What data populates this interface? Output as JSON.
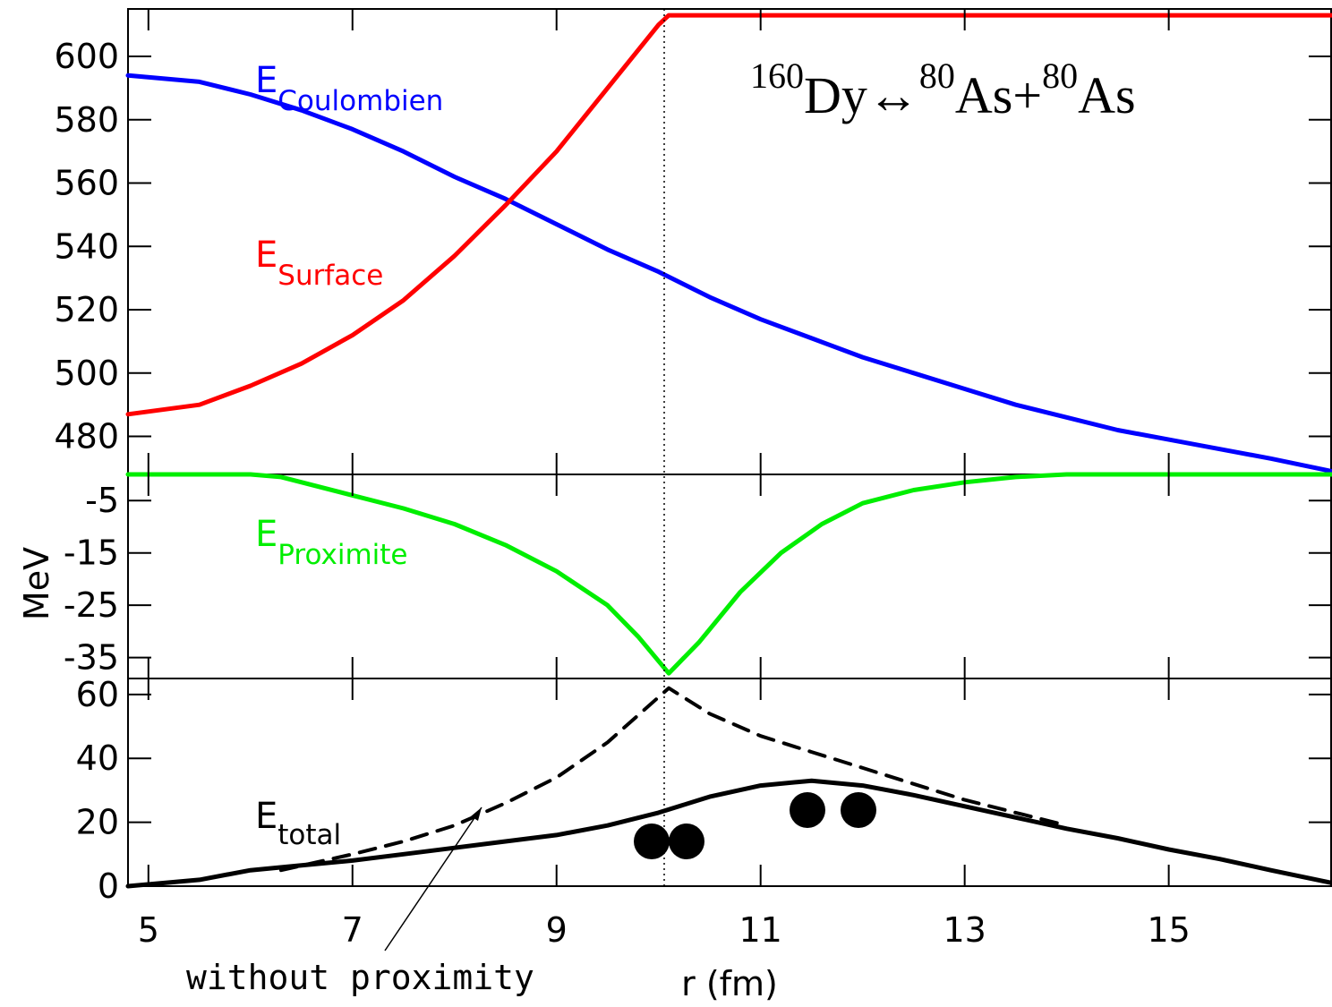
{
  "chart_data": {
    "type": "line",
    "xlabel": "r (fm)",
    "ylabel": "MeV",
    "x_ticks": [
      "5",
      "7",
      "9",
      "11",
      "13",
      "15"
    ],
    "xlim": [
      4.8,
      16.6
    ],
    "vline_x": 10.1,
    "reaction": {
      "a1": "160",
      "n1": "Dy",
      "arrow": "↔",
      "a2": "80",
      "n2": "As",
      "plus": "+",
      "a3": "80",
      "n3": "As"
    },
    "panels": [
      {
        "ylim": [
          468,
          615
        ],
        "y_ticks": [
          "600",
          "580",
          "560",
          "540",
          "520",
          "500",
          "480"
        ],
        "series": [
          {
            "name": "ECoulombien",
            "label_main": "E",
            "label_sub": "Coulombien",
            "color": "#0000ff",
            "x": [
              4.8,
              5.5,
              6.0,
              6.5,
              7.0,
              7.5,
              8.0,
              8.5,
              9.0,
              9.5,
              10.0,
              10.5,
              11.0,
              11.5,
              12.0,
              12.5,
              13.0,
              13.5,
              14.0,
              14.5,
              15.0,
              15.5,
              16.0,
              16.6
            ],
            "y": [
              594,
              592,
              588,
              583,
              577,
              570,
              562,
              555,
              547,
              539,
              532,
              524,
              517,
              511,
              505,
              500,
              495,
              490,
              486,
              482,
              479,
              476,
              473,
              469
            ]
          },
          {
            "name": "ESurface",
            "label_main": "E",
            "label_sub": "Surface",
            "color": "#ff0000",
            "x": [
              4.8,
              5.5,
              6.0,
              6.5,
              7.0,
              7.5,
              8.0,
              8.5,
              9.0,
              9.5,
              10.0,
              10.1,
              16.6
            ],
            "y": [
              487,
              490,
              496,
              503,
              512,
              523,
              537,
              553,
              570,
              590,
              610,
              613,
              613
            ]
          }
        ]
      },
      {
        "ylim": [
          -39,
          0
        ],
        "y_ticks": [
          "-5",
          "-15",
          "-25",
          "-35"
        ],
        "series": [
          {
            "name": "EProximite",
            "label_main": "E",
            "label_sub": "Proximite",
            "color": "#00ee00",
            "x": [
              4.8,
              6.0,
              6.3,
              7.0,
              7.5,
              8.0,
              8.5,
              9.0,
              9.5,
              9.8,
              10.1,
              10.4,
              10.8,
              11.2,
              11.6,
              12.0,
              12.5,
              13.0,
              13.5,
              14.0,
              16.6
            ],
            "y": [
              0,
              0,
              -0.5,
              -4,
              -6.5,
              -9.5,
              -13.5,
              -18.5,
              -25,
              -31,
              -38,
              -32,
              -22.5,
              -15,
              -9.5,
              -5.5,
              -3,
              -1.5,
              -0.5,
              0,
              0
            ]
          }
        ]
      },
      {
        "ylim": [
          0,
          65
        ],
        "y_ticks": [
          "60",
          "40",
          "20",
          "0"
        ],
        "series": [
          {
            "name": "Etotal",
            "label_main": "E",
            "label_sub": "total",
            "color": "#000000",
            "x": [
              4.8,
              5.5,
              6.0,
              6.5,
              7.0,
              7.5,
              8.0,
              8.5,
              9.0,
              9.5,
              10.0,
              10.5,
              11.0,
              11.5,
              12.0,
              12.5,
              13.0,
              13.5,
              14.0,
              14.5,
              15.0,
              15.5,
              16.0,
              16.6
            ],
            "y": [
              0,
              2,
              5,
              6.5,
              8,
              10,
              12,
              14,
              16,
              19,
              23,
              28,
              31.5,
              33,
              31.5,
              28.5,
              25,
              21.5,
              18,
              15,
              11.5,
              8.5,
              5,
              1
            ]
          },
          {
            "name": "without proximity",
            "dashed": true,
            "color": "#000000",
            "x": [
              6.3,
              7.0,
              7.5,
              8.0,
              8.5,
              9.0,
              9.5,
              10.1,
              10.5,
              11.0,
              11.5,
              12.0,
              12.5,
              13.0,
              13.5,
              14.0
            ],
            "y": [
              5,
              10,
              14,
              19,
              26,
              34,
              45,
              62,
              54,
              47,
              42,
              37,
              32,
              27,
              23,
              19
            ]
          }
        ]
      }
    ],
    "annotation": "without proximity"
  }
}
